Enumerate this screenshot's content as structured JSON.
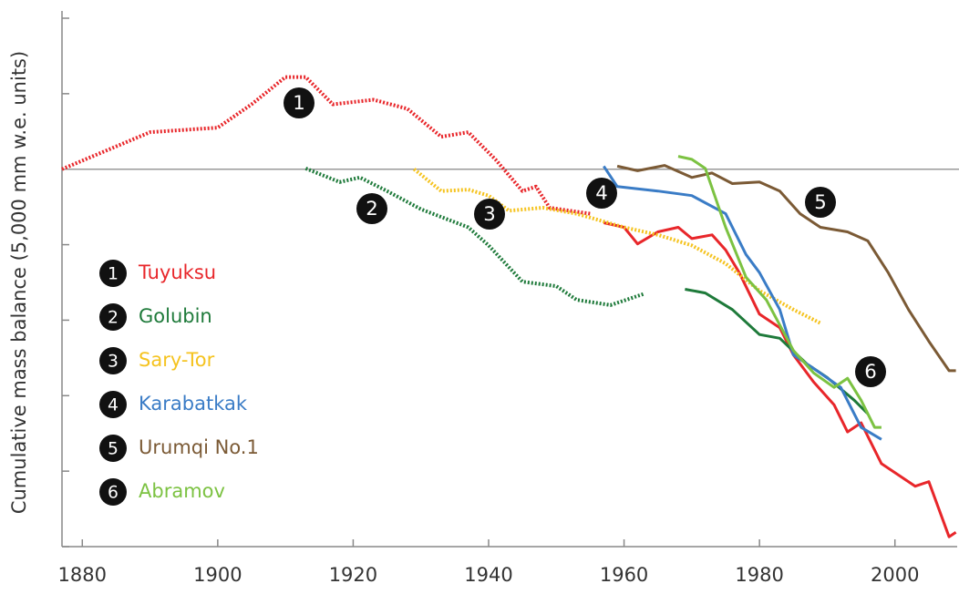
{
  "chart_data": {
    "type": "line",
    "y_label": "Cumulative mass balance (5,000 mm w.e. units)",
    "xlim": [
      1877,
      2010
    ],
    "ylim": [
      -5,
      2
    ],
    "xticks": [
      1880,
      1900,
      1920,
      1940,
      1960,
      1980,
      2000
    ],
    "yticks": [
      -5,
      -4,
      -3,
      -2,
      -1,
      0,
      1,
      2
    ],
    "legend": "center left",
    "series": [
      {
        "name": "Tuyuksu",
        "label": "1",
        "color": "#e8262a",
        "measured_from": 1957,
        "x": [
          1877,
          1890,
          1900,
          1905,
          1910,
          1913,
          1917,
          1923,
          1928,
          1933,
          1937,
          1941,
          1945,
          1947,
          1949,
          1955,
          1957,
          1960,
          1962,
          1965,
          1968,
          1970,
          1973,
          1975,
          1977,
          1980,
          1983,
          1985,
          1988,
          1991,
          1993,
          1995,
          1998,
          2001,
          2003,
          2005,
          2008,
          2009
        ],
        "values": [
          0,
          0.49,
          0.55,
          0.86,
          1.22,
          1.22,
          0.86,
          0.92,
          0.8,
          0.43,
          0.49,
          0.13,
          -0.29,
          -0.23,
          -0.51,
          -0.59,
          -0.71,
          -0.77,
          -0.99,
          -0.83,
          -0.77,
          -0.92,
          -0.87,
          -1.07,
          -1.37,
          -1.92,
          -2.1,
          -2.46,
          -2.82,
          -3.12,
          -3.48,
          -3.36,
          -3.9,
          -4.08,
          -4.2,
          -4.14,
          -4.87,
          -4.81
        ]
      },
      {
        "name": "Golubin",
        "label": "2",
        "color": "#1e7a3a",
        "measured_from": 1969,
        "x": [
          1913,
          1918,
          1921,
          1925,
          1930,
          1937,
          1940,
          1945,
          1950,
          1953,
          1958,
          1963,
          1969,
          1972,
          1976,
          1980,
          1983,
          1987,
          1990,
          1994,
          1996
        ],
        "values": [
          0.01,
          -0.17,
          -0.11,
          -0.29,
          -0.53,
          -0.77,
          -1.01,
          -1.49,
          -1.55,
          -1.73,
          -1.8,
          -1.65,
          -1.59,
          -1.64,
          -1.86,
          -2.19,
          -2.24,
          -2.58,
          -2.76,
          -3.06,
          -3.24
        ]
      },
      {
        "name": "Sary-Tor",
        "label": "3",
        "color": "#f5c31f",
        "measured_from": null,
        "x": [
          1929,
          1933,
          1937,
          1940,
          1943,
          1948,
          1953,
          1960,
          1965,
          1970,
          1975,
          1980,
          1985,
          1989
        ],
        "values": [
          0,
          -0.29,
          -0.27,
          -0.35,
          -0.55,
          -0.51,
          -0.59,
          -0.77,
          -0.87,
          -1.01,
          -1.25,
          -1.61,
          -1.86,
          -2.04
        ]
      },
      {
        "name": "Karabatkak",
        "label": "4",
        "color": "#3a7cc6",
        "measured_from": 1957,
        "x": [
          1957,
          1959,
          1965,
          1970,
          1975,
          1978,
          1980,
          1983,
          1985,
          1988,
          1992,
          1995,
          1998
        ],
        "values": [
          0.04,
          -0.23,
          -0.29,
          -0.35,
          -0.59,
          -1.13,
          -1.37,
          -1.86,
          -2.46,
          -2.64,
          -2.89,
          -3.42,
          -3.58
        ]
      },
      {
        "name": "Urumqi No.1",
        "label": "5",
        "color": "#7b5a35",
        "measured_from": 1959,
        "x": [
          1959,
          1962,
          1966,
          1970,
          1973,
          1976,
          1980,
          1983,
          1986,
          1989,
          1993,
          1996,
          1999,
          2002,
          2005,
          2008,
          2009
        ],
        "values": [
          0.04,
          -0.02,
          0.05,
          -0.11,
          -0.05,
          -0.19,
          -0.17,
          -0.29,
          -0.59,
          -0.77,
          -0.83,
          -0.95,
          -1.37,
          -1.86,
          -2.28,
          -2.67,
          -2.67
        ]
      },
      {
        "name": "Abramov",
        "label": "6",
        "color": "#7cc242",
        "measured_from": 1968,
        "x": [
          1968,
          1970,
          1972,
          1975,
          1978,
          1981,
          1985,
          1988,
          1991,
          1993,
          1995,
          1997,
          1998
        ],
        "values": [
          0.17,
          0.13,
          0.01,
          -0.77,
          -1.43,
          -1.73,
          -2.4,
          -2.7,
          -2.89,
          -2.77,
          -3.06,
          -3.42,
          -3.42
        ]
      }
    ]
  }
}
